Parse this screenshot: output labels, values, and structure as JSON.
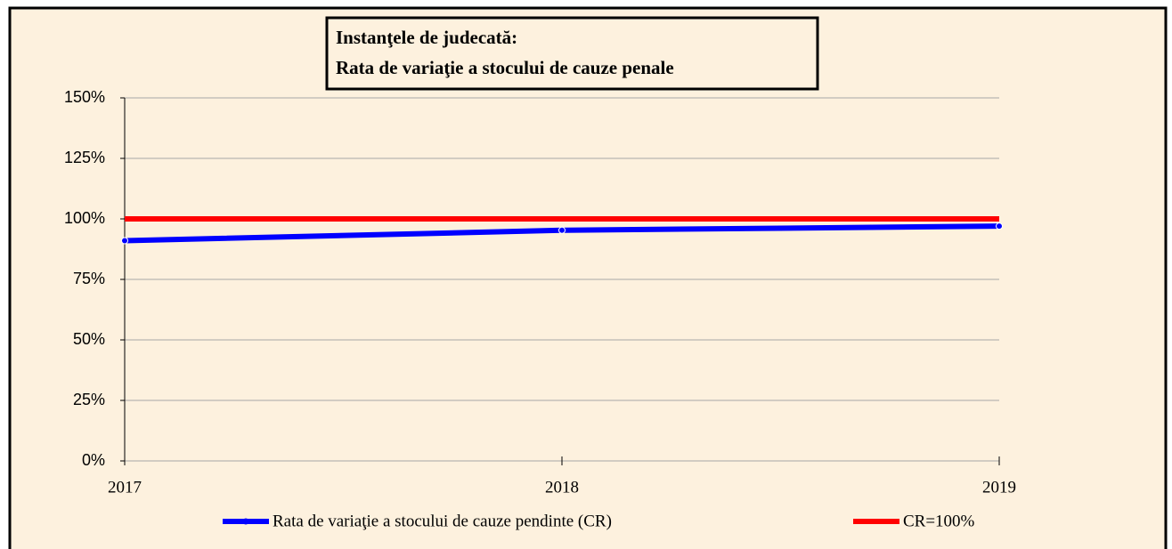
{
  "chart_data": {
    "type": "line",
    "title": [
      "Instanţele de judecată:",
      "Rata de variaţie a stocului de cauze penale"
    ],
    "categories": [
      "2017",
      "2018",
      "2019"
    ],
    "series": [
      {
        "name": "Rata de variaţie a stocului de cauze pendinte (CR)",
        "color": "#0000ff",
        "values": [
          91,
          95.3,
          97
        ]
      },
      {
        "name": "CR=100%",
        "color": "#ff0000",
        "values": [
          100,
          100,
          100
        ]
      }
    ],
    "ylim": [
      0,
      150
    ],
    "yticks": [
      {
        "value": 0,
        "label": "0%"
      },
      {
        "value": 25,
        "label": "25%"
      },
      {
        "value": 50,
        "label": "50%"
      },
      {
        "value": 75,
        "label": "75%"
      },
      {
        "value": 100,
        "label": "100%"
      },
      {
        "value": 125,
        "label": "125%"
      },
      {
        "value": 150,
        "label": "150%"
      }
    ],
    "grid": true,
    "legend": "bottom"
  }
}
